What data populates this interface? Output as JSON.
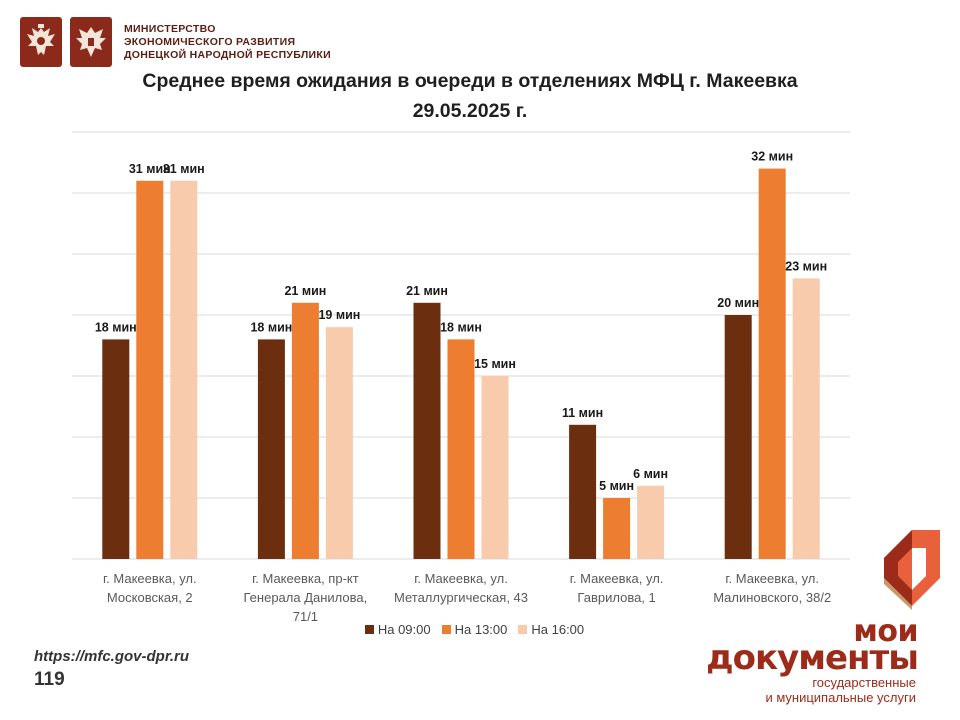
{
  "header": {
    "ministry_text": "МИНИСТЕРСТВО\nЭКОНОМИЧЕСКОГО РАЗВИТИЯ\nДОНЕЦКОЙ НАРОДНОЙ РЕСПУБЛИКИ"
  },
  "title_line1": "Среднее время ожидания в очереди в отделениях МФЦ г. Макеевка",
  "title_line2": "29.05.2025 г.",
  "colors": {
    "series_0900": "#6b2f0f",
    "series_1300": "#ed7d31",
    "series_1600": "#f8cbad",
    "grid": "#d9d9d9",
    "brand": "#9c2b1a"
  },
  "chart_data": {
    "type": "bar",
    "title": "Среднее время ожидания в очереди в отделениях МФЦ г. Макеевка 29.05.2025 г.",
    "categories": [
      [
        "г. Макеевка, ул.",
        "Московская, 2"
      ],
      [
        "г. Макеевка, пр-кт",
        "Генерала Данилова,",
        "71/1"
      ],
      [
        "г. Макеевка, ул.",
        "Металлургическая, 43"
      ],
      [
        "г. Макеевка, ул.",
        "Гаврилова, 1"
      ],
      [
        "г. Макеевка, ул.",
        "Малиновского, 38/2"
      ]
    ],
    "series": [
      {
        "name": "На 09:00",
        "values": [
          18,
          18,
          21,
          11,
          20
        ]
      },
      {
        "name": "На 13:00",
        "values": [
          31,
          21,
          18,
          5,
          32
        ]
      },
      {
        "name": "На 16:00",
        "values": [
          31,
          19,
          15,
          6,
          23
        ]
      }
    ],
    "value_suffix": " мин",
    "ylim": [
      0,
      35
    ],
    "grid": true,
    "legend_position": "bottom"
  },
  "footer": {
    "url": "https://mfc.gov-dpr.ru",
    "phone": "119"
  },
  "brand": {
    "word1": "мои",
    "word2": "документы",
    "subtitle": "государственные\nи муниципальные услуги"
  }
}
